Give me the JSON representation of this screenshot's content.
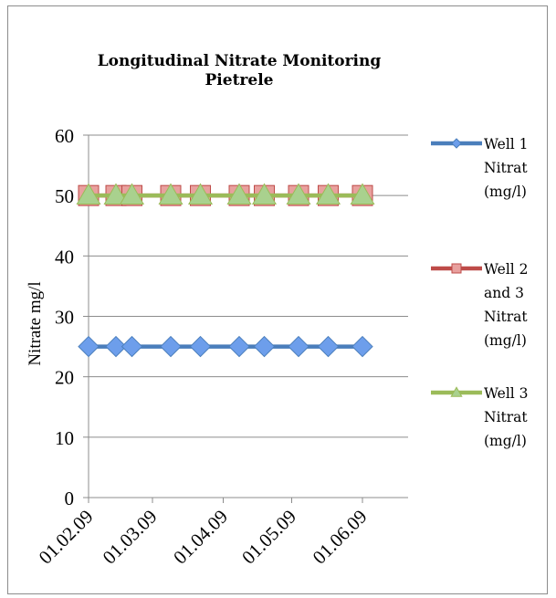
{
  "chart_data": {
    "type": "line",
    "title": [
      "Longitudinal Nitrate Monitoring",
      "Pietrele"
    ],
    "ylabel": "Nitrate mg/l",
    "xlabel": "",
    "ylim": [
      0,
      60
    ],
    "yticks": [
      0,
      10,
      20,
      30,
      40,
      50,
      60
    ],
    "xtick_labels": [
      "01.02.09",
      "01.03.09",
      "01.04.09",
      "01.05.09",
      "01.06.09"
    ],
    "grid": "horizontal",
    "legend_position": "right",
    "x_days": [
      0,
      12,
      19,
      36,
      49,
      66,
      77,
      92,
      105,
      120
    ],
    "x_axis_start": "01.02.09",
    "x_tick_days": [
      0,
      28,
      59,
      89,
      120
    ],
    "x_range_days": [
      0,
      140
    ],
    "series": [
      {
        "name": [
          "Well 1",
          "Nitrat",
          "(mg/l)"
        ],
        "color": "#4a7ebb",
        "marker_fill": "#6d9eeb",
        "marker": "diamond",
        "values": [
          25,
          25,
          25,
          25,
          25,
          25,
          25,
          25,
          25,
          25
        ]
      },
      {
        "name": [
          "Well 2",
          "and 3",
          "Nitrat",
          "(mg/l)"
        ],
        "color": "#be4b48",
        "marker_fill": "#e8a09e",
        "marker": "square",
        "values": [
          50,
          50,
          50,
          50,
          50,
          50,
          50,
          50,
          50,
          50
        ]
      },
      {
        "name": [
          "Well 3",
          "Nitrat",
          "(mg/l)"
        ],
        "color": "#9bbb59",
        "marker_fill": "#a9d18e",
        "marker": "triangle",
        "values": [
          50,
          50,
          50,
          50,
          50,
          50,
          50,
          50,
          50,
          50
        ]
      }
    ]
  }
}
